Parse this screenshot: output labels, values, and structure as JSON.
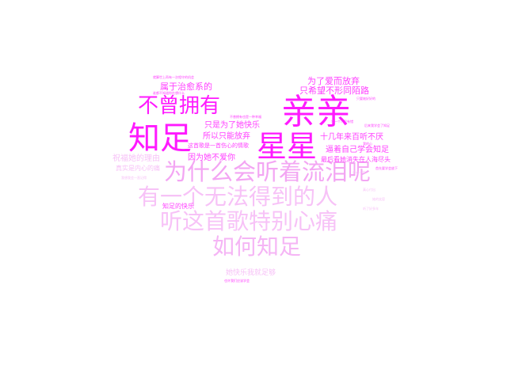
{
  "word_cloud": {
    "words": [
      {
        "text": "亲亲",
        "color": "#ff1aff"
      },
      {
        "text": "星星",
        "color": "#ff1aff"
      },
      {
        "text": "知足",
        "color": "#ff1aff"
      },
      {
        "text": "不曾拥有",
        "color": "#ff1aff"
      },
      {
        "text": "为什么会听着流泪呢",
        "color": "#f3a6f3"
      },
      {
        "text": "有一个无法得到的人",
        "color": "#f7c2f7"
      },
      {
        "text": "听这首歌特别心痛",
        "color": "#f7c2f7"
      },
      {
        "text": "如何知足",
        "color": "#f5b5f5"
      },
      {
        "text": "属于治愈系的",
        "color": "#ff40ff"
      },
      {
        "text": "为了爱而放弃",
        "color": "#ff40ff"
      },
      {
        "text": "只希望不形同陌路",
        "color": "#ff40ff"
      },
      {
        "text": "只是为了她快乐",
        "color": "#ff40ff"
      },
      {
        "text": "所以只能放弃",
        "color": "#ff40ff"
      },
      {
        "text": "因为她不爱你",
        "color": "#ff40ff"
      },
      {
        "text": "十几年来百听不厌",
        "color": "#ff40ff"
      },
      {
        "text": "逼着自己学会知足",
        "color": "#ff40ff"
      },
      {
        "text": "最后看她消失在人海尽头",
        "color": "#ff40ff"
      },
      {
        "text": "这首歌是一首伤心的情歌",
        "color": "#ff40ff"
      },
      {
        "text": "祝福她的理由",
        "color": "#f7c2f7"
      },
      {
        "text": "真实是内心的痛",
        "color": "#f7c2f7"
      },
      {
        "text": "知足的快乐",
        "color": "#ff40ff"
      },
      {
        "text": "她快乐我就足够",
        "color": "#f7c2f7"
      }
    ],
    "tiny_words": [
      {
        "text": "就算世上再有一次相守的机会",
        "color": "#ff40ff"
      },
      {
        "text": "谁都不知道你在想什么",
        "color": "#ff40ff"
      },
      {
        "text": "只要她好好的",
        "color": "#ff40ff"
      },
      {
        "text": "不曾拥有也是一种幸福",
        "color": "#ff40ff"
      },
      {
        "text": "后来我学会了知足",
        "color": "#ff40ff"
      },
      {
        "text": "首先要学会放下",
        "color": "#ff40ff"
      },
      {
        "text": "我的心",
        "color": "#ff40ff"
      },
      {
        "text": "爱一个人没有错",
        "color": "#ff40ff"
      },
      {
        "text": "也许我们应该学会",
        "color": "#ff40ff"
      },
      {
        "text": "我想我会一直记得",
        "color": "#f7c2f7"
      },
      {
        "text": "真心付出",
        "color": "#f7c2f7"
      },
      {
        "text": "听了好多年",
        "color": "#f7c2f7"
      },
      {
        "text": "她的笑容",
        "color": "#f7c2f7"
      },
      {
        "text": "会心一笑",
        "color": "#f7c2f7"
      }
    ]
  }
}
